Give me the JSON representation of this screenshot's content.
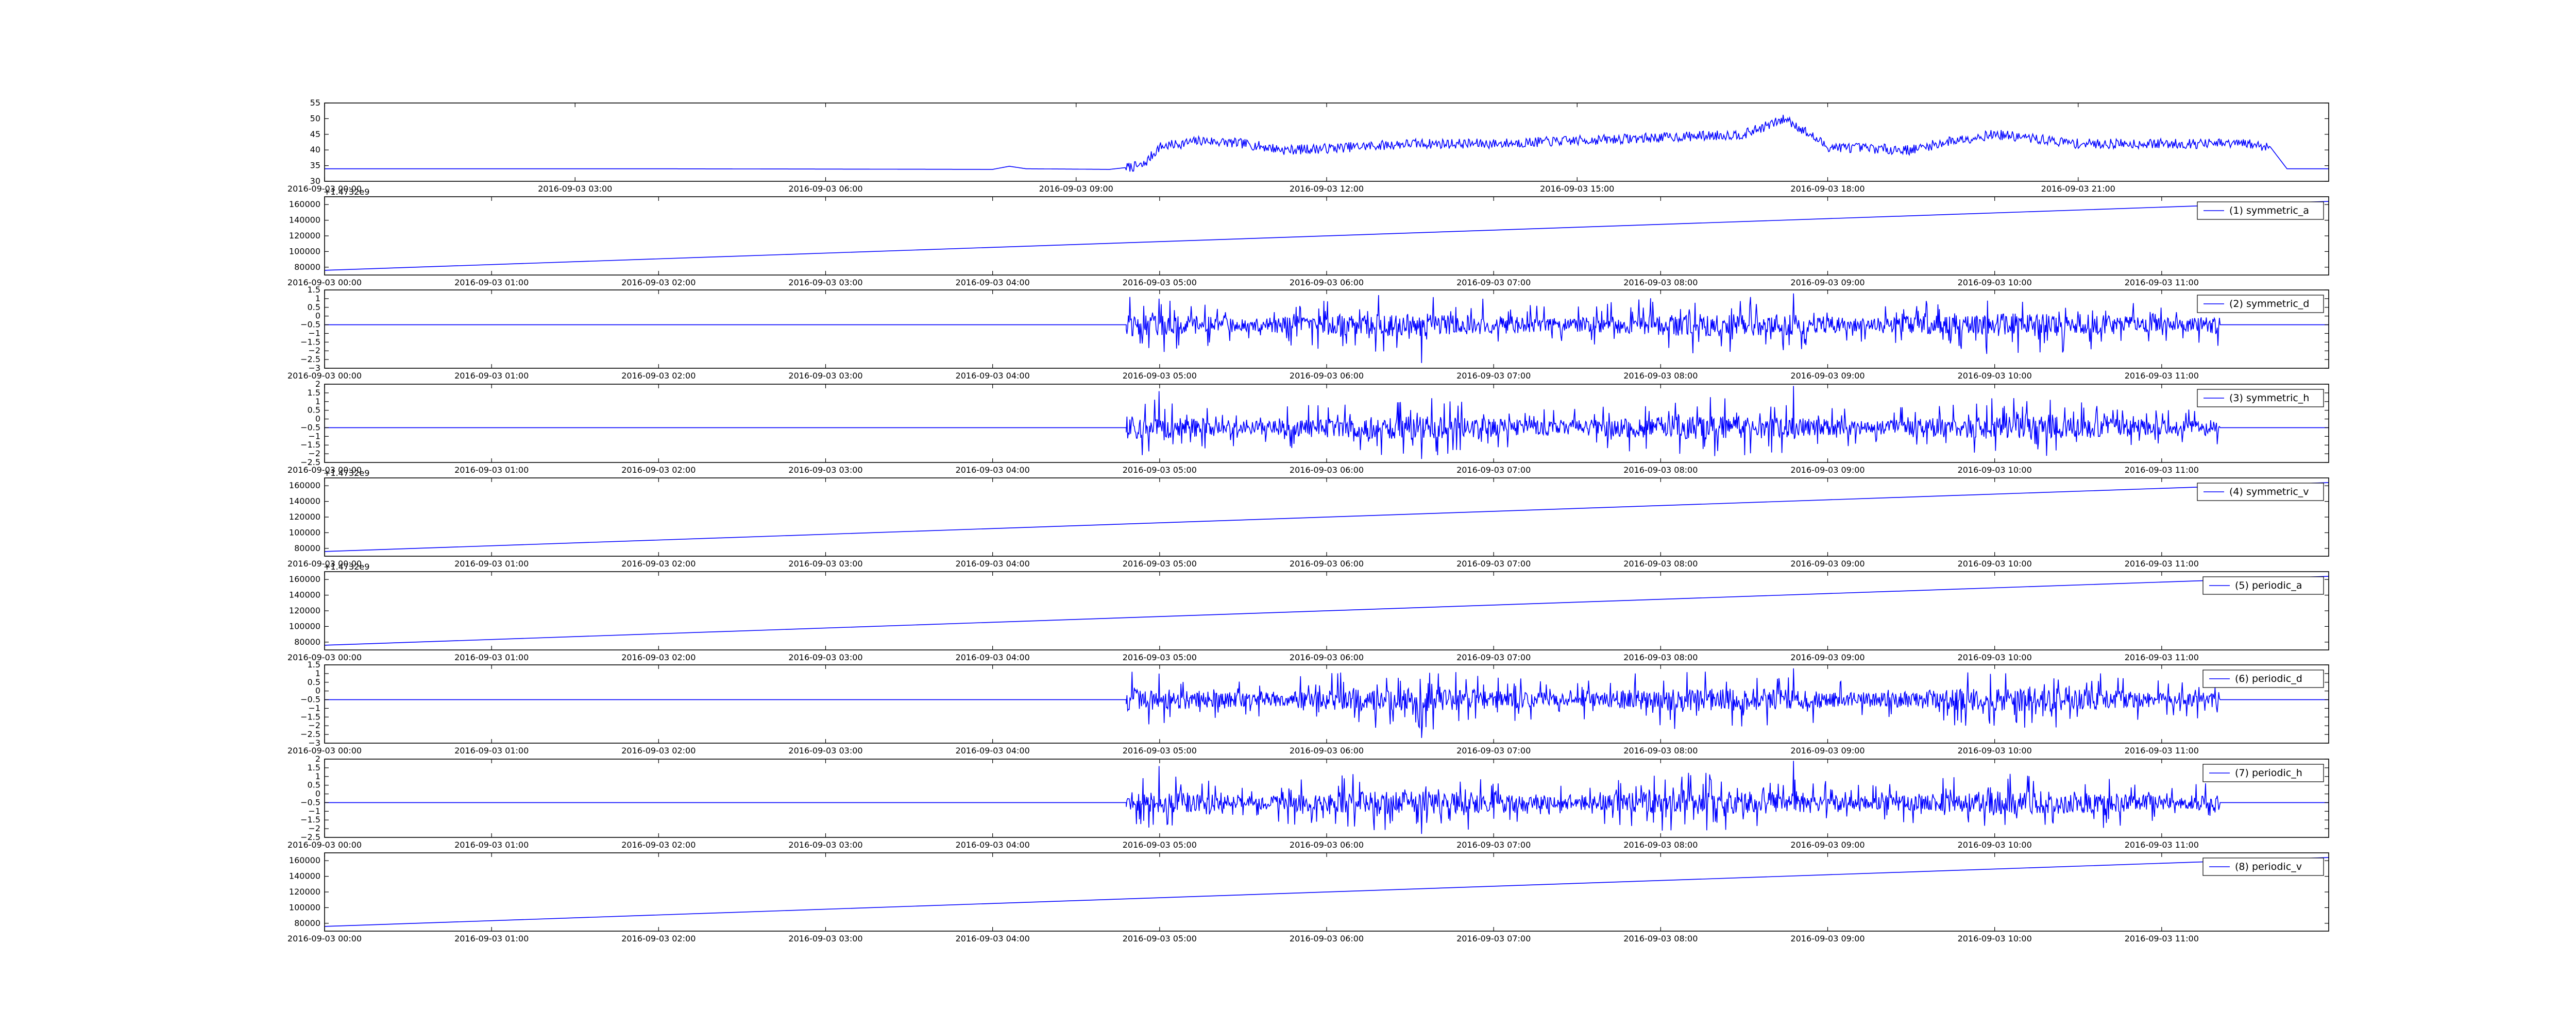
{
  "chart_data": [
    {
      "type": "line",
      "color": "#0000ff",
      "ylim": [
        30,
        55
      ],
      "yticks": [
        30,
        35,
        40,
        45,
        50,
        55
      ],
      "xlim": [
        0,
        24
      ],
      "xtick_positions": [
        0,
        3,
        6,
        9,
        12,
        15,
        18,
        21
      ],
      "xtick_labels": [
        "2016-09-03 00:00",
        "2016-09-03 03:00",
        "2016-09-03 06:00",
        "2016-09-03 09:00",
        "2016-09-03 12:00",
        "2016-09-03 15:00",
        "2016-09-03 18:00",
        "2016-09-03 21:00"
      ],
      "offset_label": "",
      "legend": "",
      "series": [
        {
          "kind": "signal",
          "x": [
            0,
            4,
            8.0,
            8.2,
            8.4,
            9.4,
            9.8,
            10,
            10.5,
            11,
            11.5,
            12,
            13,
            14,
            15,
            16,
            17,
            17.5,
            18,
            19,
            19.5,
            20,
            21,
            22,
            23,
            23.3,
            23.5,
            24
          ],
          "y": [
            34,
            34,
            33.8,
            34.8,
            34,
            33.8,
            35,
            41,
            43,
            42,
            40,
            40.5,
            42,
            42,
            43,
            44,
            45,
            50,
            41,
            40,
            43,
            45,
            42,
            42,
            42,
            41,
            34,
            34
          ]
        }
      ]
    },
    {
      "type": "line",
      "color": "#0000ff",
      "ylim": [
        70000,
        170000
      ],
      "yticks": [
        80000,
        100000,
        120000,
        140000,
        160000
      ],
      "xlim": [
        0,
        12
      ],
      "xtick_positions": [
        0,
        1,
        2,
        3,
        4,
        5,
        6,
        7,
        8,
        9,
        10,
        11
      ],
      "xtick_labels": [
        "2016-09-03 00:00",
        "2016-09-03 01:00",
        "2016-09-03 02:00",
        "2016-09-03 03:00",
        "2016-09-03 04:00",
        "2016-09-03 05:00",
        "2016-09-03 06:00",
        "2016-09-03 07:00",
        "2016-09-03 08:00",
        "2016-09-03 09:00",
        "2016-09-03 10:00",
        "2016-09-03 11:00"
      ],
      "offset_label": "+1.4732e9",
      "legend": "(1) symmetric_a",
      "series": [
        {
          "kind": "linear",
          "x": [
            0,
            12
          ],
          "y": [
            76000,
            164000
          ]
        }
      ]
    },
    {
      "type": "line",
      "color": "#0000ff",
      "ylim": [
        -3.0,
        1.5
      ],
      "yticks": [
        -3.0,
        -2.5,
        -2.0,
        -1.5,
        -1.0,
        -0.5,
        0.0,
        0.5,
        1.0,
        1.5
      ],
      "xlim": [
        0,
        12
      ],
      "xtick_positions": [
        0,
        1,
        2,
        3,
        4,
        5,
        6,
        7,
        8,
        9,
        10,
        11
      ],
      "xtick_labels": [
        "2016-09-03 00:00",
        "2016-09-03 01:00",
        "2016-09-03 02:00",
        "2016-09-03 03:00",
        "2016-09-03 04:00",
        "2016-09-03 05:00",
        "2016-09-03 06:00",
        "2016-09-03 07:00",
        "2016-09-03 08:00",
        "2016-09-03 09:00",
        "2016-09-03 10:00",
        "2016-09-03 11:00"
      ],
      "offset_label": "",
      "legend": "(2) symmetric_d",
      "series": [
        {
          "kind": "noise",
          "baseline": -0.5,
          "x_start": 4.8,
          "x_end": 11.35,
          "amplitude": 1.1,
          "peak_max": 1.3,
          "peak_min": -2.7
        }
      ]
    },
    {
      "type": "line",
      "color": "#0000ff",
      "ylim": [
        -2.5,
        2.0
      ],
      "yticks": [
        -2.5,
        -2.0,
        -1.5,
        -1.0,
        -0.5,
        0.0,
        0.5,
        1.0,
        1.5,
        2.0
      ],
      "xlim": [
        0,
        12
      ],
      "xtick_positions": [
        0,
        1,
        2,
        3,
        4,
        5,
        6,
        7,
        8,
        9,
        10,
        11
      ],
      "xtick_labels": [
        "2016-09-03 00:00",
        "2016-09-03 01:00",
        "2016-09-03 02:00",
        "2016-09-03 03:00",
        "2016-09-03 04:00",
        "2016-09-03 05:00",
        "2016-09-03 06:00",
        "2016-09-03 07:00",
        "2016-09-03 08:00",
        "2016-09-03 09:00",
        "2016-09-03 10:00",
        "2016-09-03 11:00"
      ],
      "offset_label": "",
      "legend": "(3) symmetric_h",
      "series": [
        {
          "kind": "noise",
          "baseline": -0.5,
          "x_start": 4.8,
          "x_end": 11.35,
          "amplitude": 1.1,
          "peak_max": 1.9,
          "peak_min": -2.3
        }
      ]
    },
    {
      "type": "line",
      "color": "#0000ff",
      "ylim": [
        70000,
        170000
      ],
      "yticks": [
        80000,
        100000,
        120000,
        140000,
        160000
      ],
      "xlim": [
        0,
        12
      ],
      "xtick_positions": [
        0,
        1,
        2,
        3,
        4,
        5,
        6,
        7,
        8,
        9,
        10,
        11
      ],
      "xtick_labels": [
        "2016-09-03 00:00",
        "2016-09-03 01:00",
        "2016-09-03 02:00",
        "2016-09-03 03:00",
        "2016-09-03 04:00",
        "2016-09-03 05:00",
        "2016-09-03 06:00",
        "2016-09-03 07:00",
        "2016-09-03 08:00",
        "2016-09-03 09:00",
        "2016-09-03 10:00",
        "2016-09-03 11:00"
      ],
      "offset_label": "+1.4732e9",
      "legend": "(4) symmetric_v",
      "series": [
        {
          "kind": "linear",
          "x": [
            0,
            12
          ],
          "y": [
            76000,
            164000
          ]
        }
      ]
    },
    {
      "type": "line",
      "color": "#0000ff",
      "ylim": [
        70000,
        170000
      ],
      "yticks": [
        80000,
        100000,
        120000,
        140000,
        160000
      ],
      "xlim": [
        0,
        12
      ],
      "xtick_positions": [
        0,
        1,
        2,
        3,
        4,
        5,
        6,
        7,
        8,
        9,
        10,
        11
      ],
      "xtick_labels": [
        "2016-09-03 00:00",
        "2016-09-03 01:00",
        "2016-09-03 02:00",
        "2016-09-03 03:00",
        "2016-09-03 04:00",
        "2016-09-03 05:00",
        "2016-09-03 06:00",
        "2016-09-03 07:00",
        "2016-09-03 08:00",
        "2016-09-03 09:00",
        "2016-09-03 10:00",
        "2016-09-03 11:00"
      ],
      "offset_label": "+1.4732e9",
      "legend": "(5) periodic_a",
      "series": [
        {
          "kind": "linear",
          "x": [
            0,
            12
          ],
          "y": [
            76000,
            164000
          ]
        }
      ]
    },
    {
      "type": "line",
      "color": "#0000ff",
      "ylim": [
        -3.0,
        1.5
      ],
      "yticks": [
        -3.0,
        -2.5,
        -2.0,
        -1.5,
        -1.0,
        -0.5,
        0.0,
        0.5,
        1.0,
        1.5
      ],
      "xlim": [
        0,
        12
      ],
      "xtick_positions": [
        0,
        1,
        2,
        3,
        4,
        5,
        6,
        7,
        8,
        9,
        10,
        11
      ],
      "xtick_labels": [
        "2016-09-03 00:00",
        "2016-09-03 01:00",
        "2016-09-03 02:00",
        "2016-09-03 03:00",
        "2016-09-03 04:00",
        "2016-09-03 05:00",
        "2016-09-03 06:00",
        "2016-09-03 07:00",
        "2016-09-03 08:00",
        "2016-09-03 09:00",
        "2016-09-03 10:00",
        "2016-09-03 11:00"
      ],
      "offset_label": "",
      "legend": "(6) periodic_d",
      "series": [
        {
          "kind": "noise",
          "baseline": -0.5,
          "x_start": 4.8,
          "x_end": 11.35,
          "amplitude": 1.1,
          "peak_max": 1.3,
          "peak_min": -2.7
        }
      ]
    },
    {
      "type": "line",
      "color": "#0000ff",
      "ylim": [
        -2.5,
        2.0
      ],
      "yticks": [
        -2.5,
        -2.0,
        -1.5,
        -1.0,
        -0.5,
        0.0,
        0.5,
        1.0,
        1.5,
        2.0
      ],
      "xlim": [
        0,
        12
      ],
      "xtick_positions": [
        0,
        1,
        2,
        3,
        4,
        5,
        6,
        7,
        8,
        9,
        10,
        11
      ],
      "xtick_labels": [
        "2016-09-03 00:00",
        "2016-09-03 01:00",
        "2016-09-03 02:00",
        "2016-09-03 03:00",
        "2016-09-03 04:00",
        "2016-09-03 05:00",
        "2016-09-03 06:00",
        "2016-09-03 07:00",
        "2016-09-03 08:00",
        "2016-09-03 09:00",
        "2016-09-03 10:00",
        "2016-09-03 11:00"
      ],
      "offset_label": "",
      "legend": "(7) periodic_h",
      "series": [
        {
          "kind": "noise",
          "baseline": -0.5,
          "x_start": 4.8,
          "x_end": 11.35,
          "amplitude": 1.1,
          "peak_max": 1.9,
          "peak_min": -2.3
        }
      ]
    },
    {
      "type": "line",
      "color": "#0000ff",
      "ylim": [
        70000,
        170000
      ],
      "yticks": [
        80000,
        100000,
        120000,
        140000,
        160000
      ],
      "xlim": [
        0,
        12
      ],
      "xtick_positions": [
        0,
        1,
        2,
        3,
        4,
        5,
        6,
        7,
        8,
        9,
        10,
        11
      ],
      "xtick_labels": [
        "2016-09-03 00:00",
        "2016-09-03 01:00",
        "2016-09-03 02:00",
        "2016-09-03 03:00",
        "2016-09-03 04:00",
        "2016-09-03 05:00",
        "2016-09-03 06:00",
        "2016-09-03 07:00",
        "2016-09-03 08:00",
        "2016-09-03 09:00",
        "2016-09-03 10:00",
        "2016-09-03 11:00"
      ],
      "offset_label": "",
      "legend": "(8) periodic_v",
      "series": [
        {
          "kind": "linear",
          "x": [
            0,
            12
          ],
          "y": [
            76000,
            164000
          ]
        }
      ]
    }
  ]
}
